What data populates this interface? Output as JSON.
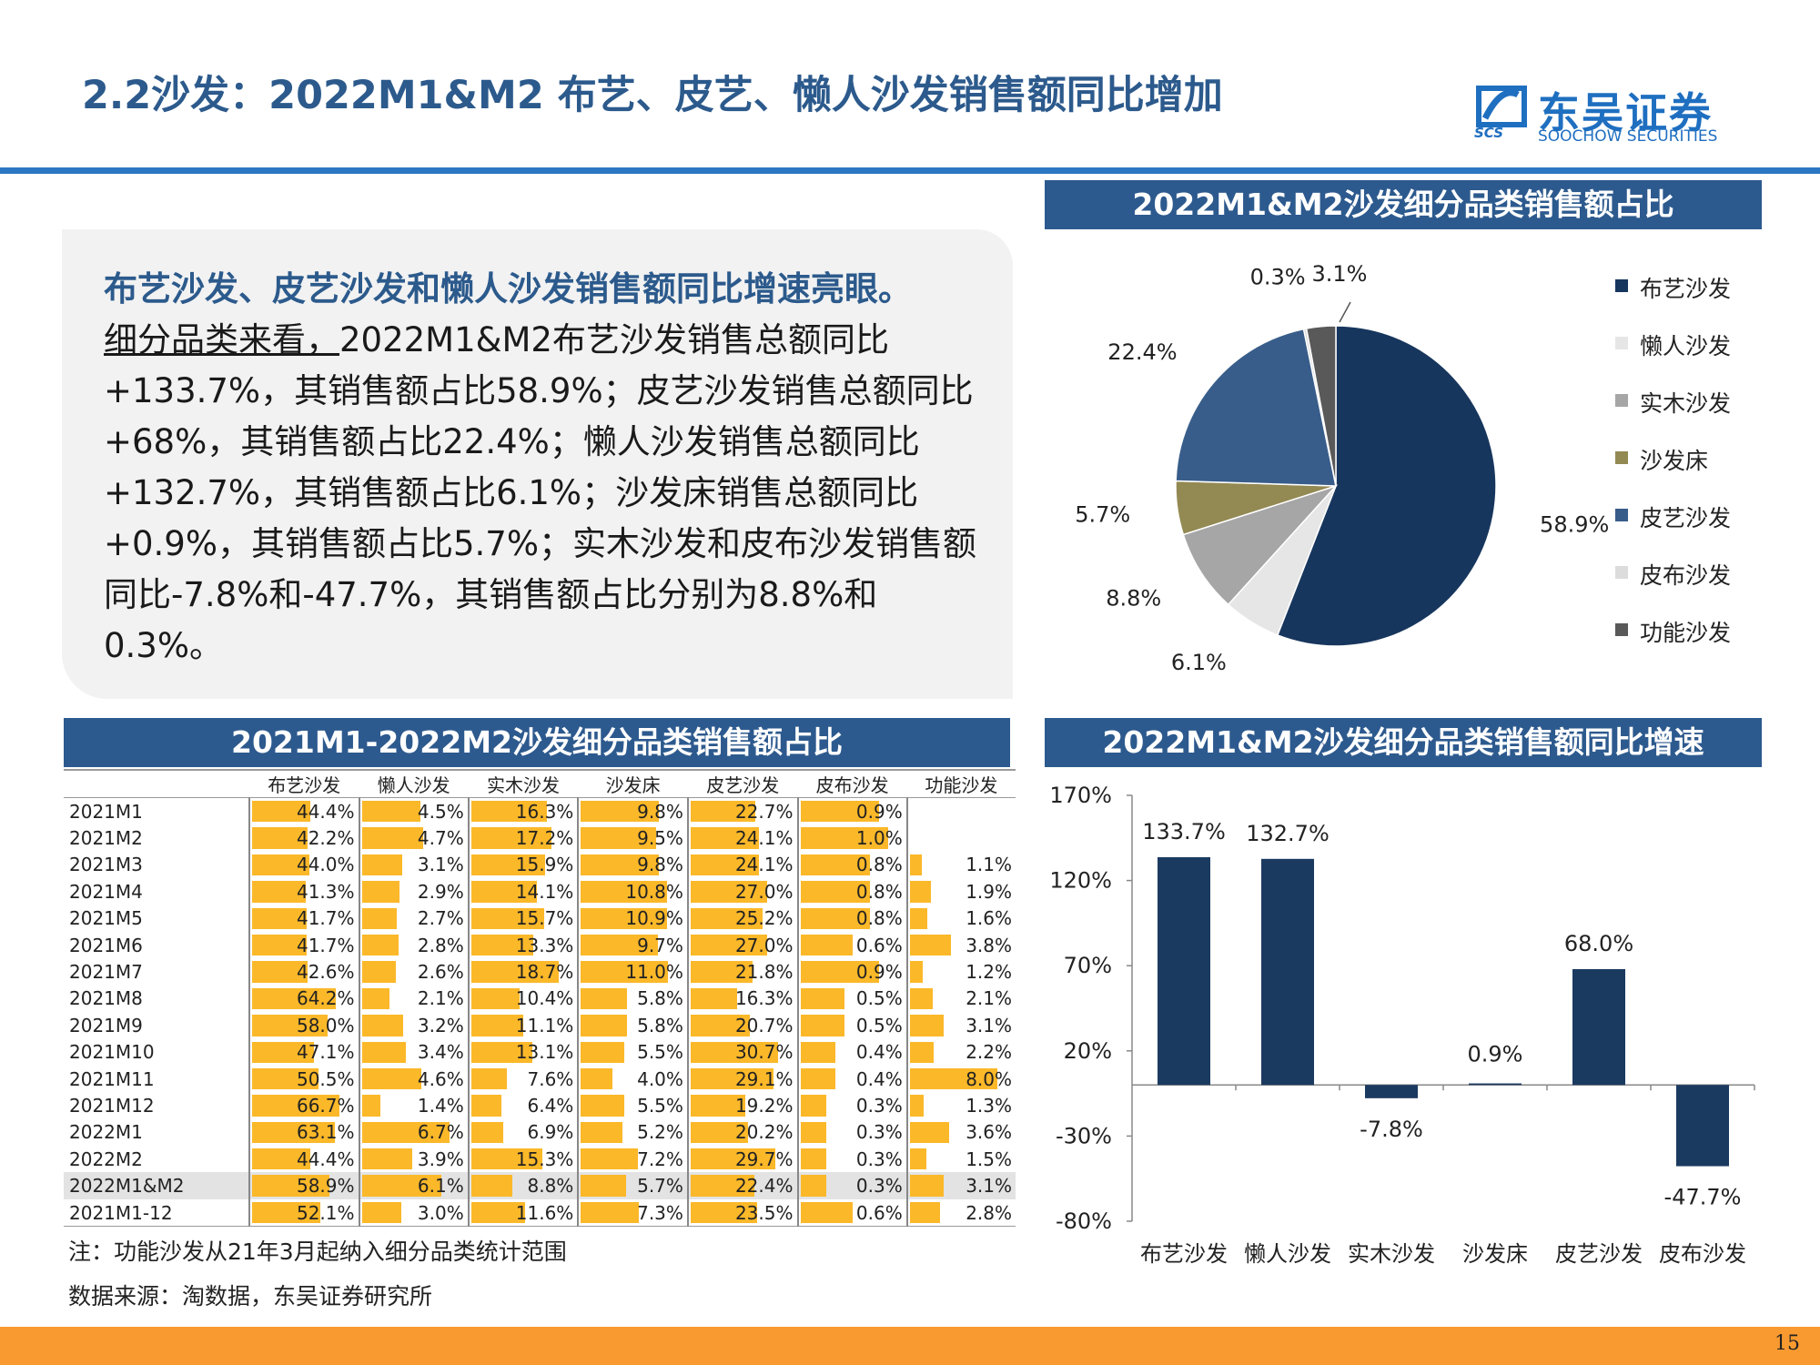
{
  "header": {
    "title": "2.2沙发：2022M1&M2 布艺、皮艺、懒人沙发销售额同比增加",
    "logo_cn": "东吴证券",
    "logo_en": "SOOCHOW SECURITIES",
    "logo_abbr": "SCS"
  },
  "text": {
    "headline": "布艺沙发、皮艺沙发和懒人沙发销售额同比增速亮眼。",
    "lead": "细分品类来看，",
    "body": "2022M1&M2布艺沙发销售总额同比+133.7%，其销售额占比58.9%；皮艺沙发销售总额同比+68%，其销售额占比22.4%；懒人沙发销售总额同比+132.7%，其销售额占比6.1%；沙发床销售总额同比+0.9%，其销售额占比5.7%；实木沙发和皮布沙发销售额同比-7.8%和-47.7%，其销售额占比分别为8.8%和0.3%。"
  },
  "panels": {
    "pie_title": "2022M1&M2沙发细分品类销售额占比",
    "table_title": "2021M1-2022M2沙发细分品类销售额占比",
    "bar_title": "2022M1&M2沙发细分品类销售额同比增速"
  },
  "colors": {
    "bar_fill": "#1b3a60",
    "table_bar": "#fbb829",
    "panel_bg": "#2d5a8e",
    "footer": "#f99a30"
  },
  "chart_data": [
    {
      "type": "pie",
      "title": "2022M1&M2沙发细分品类销售额占比",
      "legend_position": "right",
      "slices": [
        {
          "name": "布艺沙发",
          "value": 58.9,
          "label": "58.9%",
          "color": "#17365d"
        },
        {
          "name": "懒人沙发",
          "value": 6.1,
          "label": "6.1%",
          "color": "#e6e6e6"
        },
        {
          "name": "实木沙发",
          "value": 8.8,
          "label": "8.8%",
          "color": "#a6a6a6"
        },
        {
          "name": "沙发床",
          "value": 5.7,
          "label": "5.7%",
          "color": "#938953"
        },
        {
          "name": "皮艺沙发",
          "value": 22.4,
          "label": "22.4%",
          "color": "#385d8a"
        },
        {
          "name": "皮布沙发",
          "value": 0.3,
          "label": "0.3%",
          "color": "#dcdcdc"
        },
        {
          "name": "功能沙发",
          "value": 3.1,
          "label": "3.1%",
          "color": "#595959"
        }
      ]
    },
    {
      "type": "table",
      "title": "2021M1-2022M2沙发细分品类销售额占比",
      "columns": [
        "",
        "布艺沙发",
        "懒人沙发",
        "实木沙发",
        "沙发床",
        "皮艺沙发",
        "皮布沙发",
        "功能沙发"
      ],
      "rows": [
        {
          "label": "2021M1",
          "values": [
            "44.4%",
            "4.5%",
            "16.3%",
            "9.8%",
            "22.7%",
            "0.9%",
            ""
          ]
        },
        {
          "label": "2021M2",
          "values": [
            "42.2%",
            "4.7%",
            "17.2%",
            "9.5%",
            "24.1%",
            "1.0%",
            ""
          ]
        },
        {
          "label": "2021M3",
          "values": [
            "44.0%",
            "3.1%",
            "15.9%",
            "9.8%",
            "24.1%",
            "0.8%",
            "1.1%"
          ]
        },
        {
          "label": "2021M4",
          "values": [
            "41.3%",
            "2.9%",
            "14.1%",
            "10.8%",
            "27.0%",
            "0.8%",
            "1.9%"
          ]
        },
        {
          "label": "2021M5",
          "values": [
            "41.7%",
            "2.7%",
            "15.7%",
            "10.9%",
            "25.2%",
            "0.8%",
            "1.6%"
          ]
        },
        {
          "label": "2021M6",
          "values": [
            "41.7%",
            "2.8%",
            "13.3%",
            "9.7%",
            "27.0%",
            "0.6%",
            "3.8%"
          ]
        },
        {
          "label": "2021M7",
          "values": [
            "42.6%",
            "2.6%",
            "18.7%",
            "11.0%",
            "21.8%",
            "0.9%",
            "1.2%"
          ]
        },
        {
          "label": "2021M8",
          "values": [
            "64.2%",
            "2.1%",
            "10.4%",
            "5.8%",
            "16.3%",
            "0.5%",
            "2.1%"
          ]
        },
        {
          "label": "2021M9",
          "values": [
            "58.0%",
            "3.2%",
            "11.1%",
            "5.8%",
            "20.7%",
            "0.5%",
            "3.1%"
          ]
        },
        {
          "label": "2021M10",
          "values": [
            "47.1%",
            "3.4%",
            "13.1%",
            "5.5%",
            "30.7%",
            "0.4%",
            "2.2%"
          ]
        },
        {
          "label": "2021M11",
          "values": [
            "50.5%",
            "4.6%",
            "7.6%",
            "4.0%",
            "29.1%",
            "0.4%",
            "8.0%"
          ]
        },
        {
          "label": "2021M12",
          "values": [
            "66.7%",
            "1.4%",
            "6.4%",
            "5.5%",
            "19.2%",
            "0.3%",
            "1.3%"
          ]
        },
        {
          "label": "2022M1",
          "values": [
            "63.1%",
            "6.7%",
            "6.9%",
            "5.2%",
            "20.2%",
            "0.3%",
            "3.6%"
          ]
        },
        {
          "label": "2022M2",
          "values": [
            "44.4%",
            "3.9%",
            "15.3%",
            "7.2%",
            "29.7%",
            "0.3%",
            "1.5%"
          ]
        },
        {
          "label": "2022M1&M2",
          "values": [
            "58.9%",
            "6.1%",
            "8.8%",
            "5.7%",
            "22.4%",
            "0.3%",
            "3.1%"
          ],
          "highlight": true
        },
        {
          "label": "2021M1-12",
          "values": [
            "52.1%",
            "3.0%",
            "11.6%",
            "7.3%",
            "23.5%",
            "0.6%",
            "2.8%"
          ]
        }
      ]
    },
    {
      "type": "bar",
      "title": "2022M1&M2沙发细分品类销售额同比增速",
      "categories": [
        "布艺沙发",
        "懒人沙发",
        "实木沙发",
        "沙发床",
        "皮艺沙发",
        "皮布沙发"
      ],
      "values": [
        133.7,
        132.7,
        -7.8,
        0.9,
        68.0,
        -47.7
      ],
      "labels": [
        "133.7%",
        "132.7%",
        "-7.8%",
        "0.9%",
        "68.0%",
        "-47.7%"
      ],
      "ylim": [
        -80,
        170
      ],
      "yticks": [
        170,
        120,
        70,
        20,
        -30,
        -80
      ],
      "ytick_labels": [
        "170%",
        "120%",
        "70%",
        "20%",
        "-30%",
        "-80%"
      ],
      "grid": false
    }
  ],
  "footer": {
    "note": "注：功能沙发从21年3月起纳入细分品类统计范围",
    "source": "数据来源：淘数据，东吴证券研究所",
    "page": "15"
  }
}
